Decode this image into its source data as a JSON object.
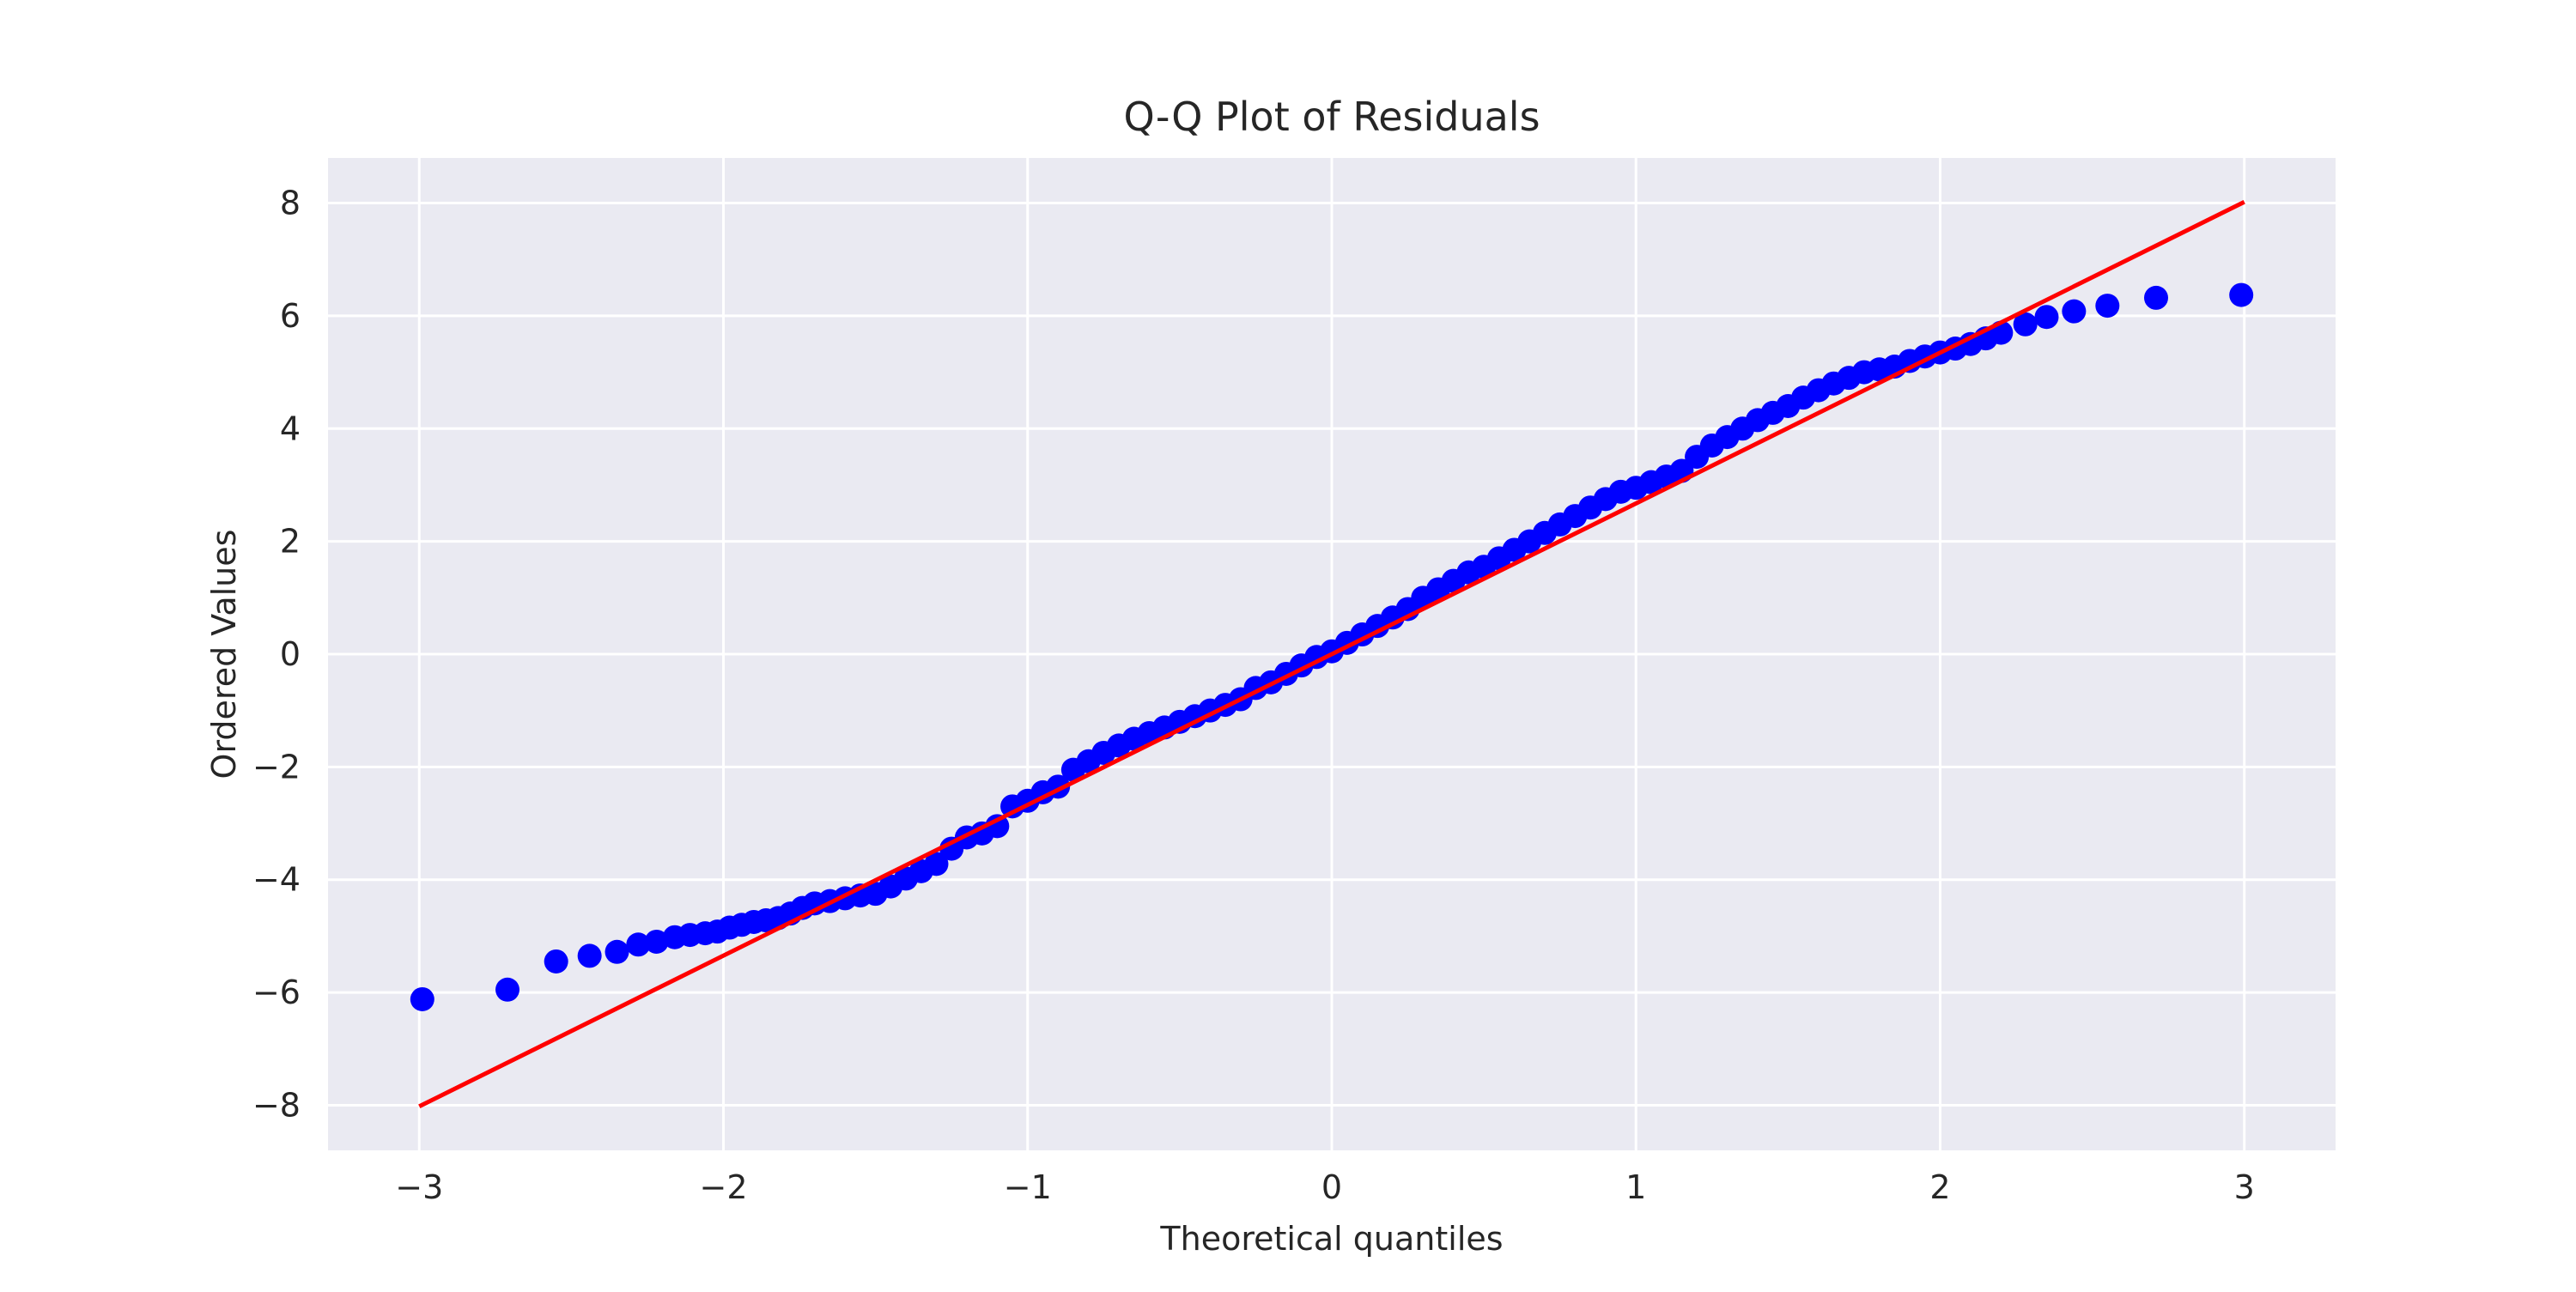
{
  "chart_data": {
    "type": "scatter",
    "title": "Q-Q Plot of Residuals",
    "xlabel": "Theoretical quantiles",
    "ylabel": "Ordered Values",
    "xlim": [
      -3.3,
      3.3
    ],
    "ylim": [
      -8.8,
      8.8
    ],
    "x_ticks": [
      -3,
      -2,
      -1,
      0,
      1,
      2,
      3
    ],
    "y_ticks": [
      -8,
      -6,
      -4,
      -2,
      0,
      2,
      4,
      6,
      8
    ],
    "x_tick_labels": [
      "−3",
      "−2",
      "−1",
      "0",
      "1",
      "2",
      "3"
    ],
    "y_tick_labels": [
      "−8",
      "−6",
      "−4",
      "−2",
      "0",
      "2",
      "4",
      "6",
      "8"
    ],
    "grid": true,
    "background_color": "#eaeaf2",
    "grid_color": "#ffffff",
    "marker_color": "#0000ff",
    "line_color": "#ff0000",
    "fit_line": {
      "x": [
        -3.0,
        3.0
      ],
      "y": [
        -8.02,
        8.02
      ]
    },
    "points": {
      "x": [
        -2.99,
        -2.71,
        -2.55,
        -2.44,
        -2.35,
        -2.28,
        -2.22,
        -2.16,
        -2.11,
        -2.06,
        -2.02,
        -1.98,
        -1.94,
        -1.9,
        -1.86,
        -1.82,
        -1.78,
        -1.74,
        -1.7,
        -1.65,
        -1.6,
        -1.55,
        -1.5,
        -1.45,
        -1.4,
        -1.35,
        -1.3,
        -1.25,
        -1.2,
        -1.15,
        -1.1,
        -1.05,
        -1.0,
        -0.95,
        -0.9,
        -0.85,
        -0.8,
        -0.75,
        -0.7,
        -0.65,
        -0.6,
        -0.55,
        -0.5,
        -0.45,
        -0.4,
        -0.35,
        -0.3,
        -0.25,
        -0.2,
        -0.15,
        -0.1,
        -0.05,
        0.0,
        0.05,
        0.1,
        0.15,
        0.2,
        0.25,
        0.3,
        0.35,
        0.4,
        0.45,
        0.5,
        0.55,
        0.6,
        0.65,
        0.7,
        0.75,
        0.8,
        0.85,
        0.9,
        0.95,
        1.0,
        1.05,
        1.1,
        1.15,
        1.2,
        1.25,
        1.3,
        1.35,
        1.4,
        1.45,
        1.5,
        1.55,
        1.6,
        1.65,
        1.7,
        1.75,
        1.8,
        1.85,
        1.9,
        1.95,
        2.0,
        2.05,
        2.1,
        2.15,
        2.2,
        2.28,
        2.35,
        2.44,
        2.55,
        2.71,
        2.99
      ],
      "y": [
        -6.12,
        -5.95,
        -5.45,
        -5.35,
        -5.28,
        -5.15,
        -5.1,
        -5.02,
        -4.98,
        -4.95,
        -4.92,
        -4.85,
        -4.8,
        -4.75,
        -4.72,
        -4.68,
        -4.6,
        -4.5,
        -4.42,
        -4.38,
        -4.33,
        -4.28,
        -4.25,
        -4.12,
        -3.98,
        -3.85,
        -3.72,
        -3.45,
        -3.25,
        -3.18,
        -3.05,
        -2.7,
        -2.6,
        -2.45,
        -2.35,
        -2.05,
        -1.9,
        -1.75,
        -1.62,
        -1.5,
        -1.4,
        -1.3,
        -1.2,
        -1.1,
        -1.0,
        -0.9,
        -0.8,
        -0.6,
        -0.5,
        -0.35,
        -0.2,
        -0.05,
        0.05,
        0.2,
        0.35,
        0.5,
        0.65,
        0.8,
        1.0,
        1.15,
        1.3,
        1.45,
        1.55,
        1.7,
        1.85,
        2.0,
        2.15,
        2.3,
        2.45,
        2.6,
        2.75,
        2.88,
        2.95,
        3.05,
        3.15,
        3.25,
        3.5,
        3.7,
        3.85,
        4.0,
        4.15,
        4.28,
        4.4,
        4.55,
        4.68,
        4.8,
        4.9,
        5.0,
        5.05,
        5.1,
        5.2,
        5.28,
        5.35,
        5.42,
        5.5,
        5.6,
        5.7,
        5.85,
        5.98,
        6.08,
        6.18,
        6.32,
        6.37
      ]
    }
  }
}
